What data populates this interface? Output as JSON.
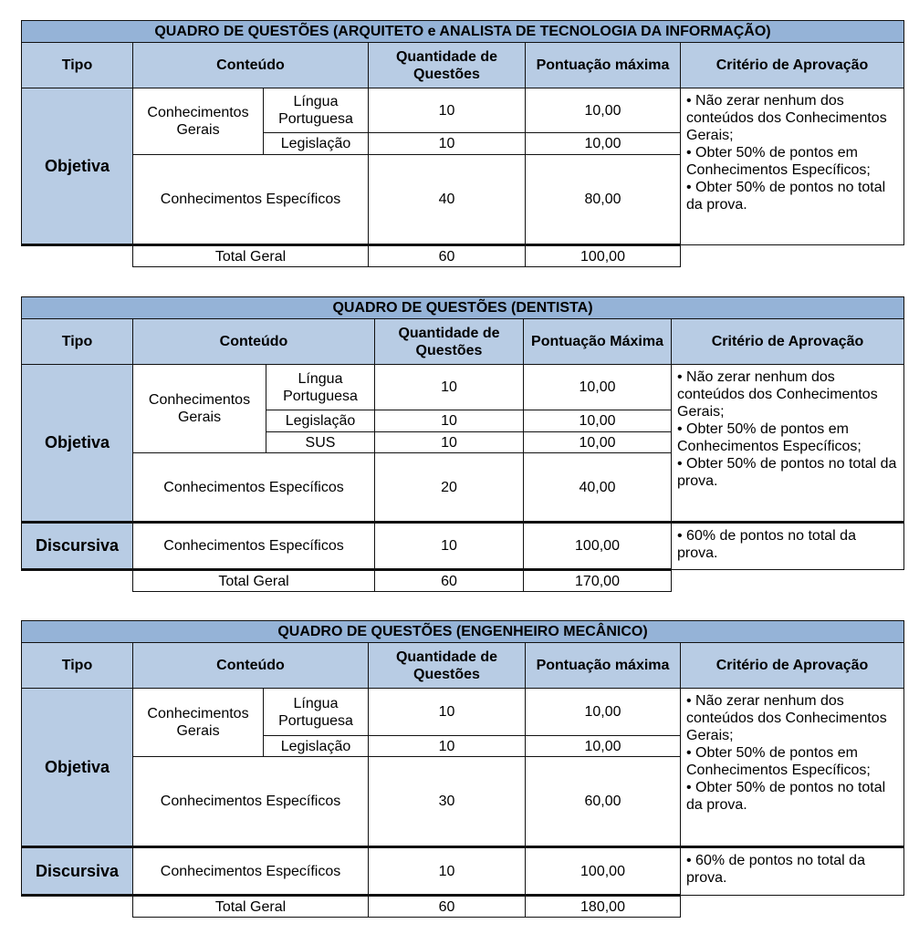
{
  "tables": [
    {
      "title": "QUADRO DE QUESTÕES (ARQUITETO e ANALISTA DE TECNOLOGIA DA INFORMAÇÃO)",
      "headers": {
        "tipo": "Tipo",
        "conteudo": "Conteúdo",
        "quantidade": "Quantidade de Questões",
        "pontuacao": "Pontuação máxima",
        "criterio": "Critério de Aprovação"
      },
      "objetiva": {
        "label": "Objetiva",
        "group": "Conhecimentos Gerais",
        "sub_rows": [
          {
            "conteudo": "Língua Portuguesa",
            "quantidade": "10",
            "pontuacao": "10,00"
          },
          {
            "conteudo": "Legislação",
            "quantidade": "10",
            "pontuacao": "10,00"
          }
        ],
        "especificos": {
          "conteudo": "Conhecimentos Específicos",
          "quantidade": "40",
          "pontuacao": "80,00"
        },
        "criterio": [
          "•  Não zerar nenhum dos conteúdos dos Conhecimentos Gerais;",
          "•  Obter 50% de pontos em Conhecimentos Específicos;",
          "•  Obter 50% de pontos no total da prova."
        ]
      },
      "total": {
        "label": "Total Geral",
        "quantidade": "60",
        "pontuacao": "100,00"
      }
    },
    {
      "title": "QUADRO DE QUESTÕES (DENTISTA)",
      "headers": {
        "tipo": "Tipo",
        "conteudo": "Conteúdo",
        "quantidade": "Quantidade de Questões",
        "pontuacao": "Pontuação Máxima",
        "criterio": "Critério de Aprovação"
      },
      "objetiva": {
        "label": "Objetiva",
        "group": "Conhecimentos Gerais",
        "sub_rows": [
          {
            "conteudo": "Língua Portuguesa",
            "quantidade": "10",
            "pontuacao": "10,00"
          },
          {
            "conteudo": "Legislação",
            "quantidade": "10",
            "pontuacao": "10,00"
          },
          {
            "conteudo": "SUS",
            "quantidade": "10",
            "pontuacao": "10,00"
          }
        ],
        "especificos": {
          "conteudo": "Conhecimentos Específicos",
          "quantidade": "20",
          "pontuacao": "40,00"
        },
        "criterio": [
          "• Não zerar nenhum dos conteúdos dos Conhecimentos Gerais;",
          "• Obter 50% de pontos em Conhecimentos Específicos;",
          "• Obter 50% de pontos no total da prova."
        ]
      },
      "discursiva": {
        "label": "Discursiva",
        "conteudo": "Conhecimentos Específicos",
        "quantidade": "10",
        "pontuacao": "100,00",
        "criterio": "• 60% de pontos no total da prova."
      },
      "total": {
        "label": "Total Geral",
        "quantidade": "60",
        "pontuacao": "170,00"
      }
    },
    {
      "title": "QUADRO DE QUESTÕES (ENGENHEIRO MECÂNICO)",
      "headers": {
        "tipo": "Tipo",
        "conteudo": "Conteúdo",
        "quantidade": "Quantidade de Questões",
        "pontuacao": "Pontuação máxima",
        "criterio": "Critério de Aprovação"
      },
      "objetiva": {
        "label": "Objetiva",
        "group": "Conhecimentos Gerais",
        "sub_rows": [
          {
            "conteudo": "Língua Portuguesa",
            "quantidade": "10",
            "pontuacao": "10,00"
          },
          {
            "conteudo": "Legislação",
            "quantidade": "10",
            "pontuacao": "10,00"
          }
        ],
        "especificos": {
          "conteudo": "Conhecimentos Específicos",
          "quantidade": "30",
          "pontuacao": "60,00"
        },
        "criterio": [
          "•  Não zerar nenhum dos conteúdos dos Conhecimentos Gerais;",
          "•  Obter 50% de pontos em Conhecimentos Específicos;",
          "•  Obter 50% de pontos no total da prova."
        ]
      },
      "discursiva": {
        "label": "Discursiva",
        "conteudo": "Conhecimentos Específicos",
        "quantidade": "10",
        "pontuacao": "100,00",
        "criterio": "•  60% de pontos no total da prova."
      },
      "total": {
        "label": "Total Geral",
        "quantidade": "60",
        "pontuacao": "180,00"
      }
    }
  ]
}
